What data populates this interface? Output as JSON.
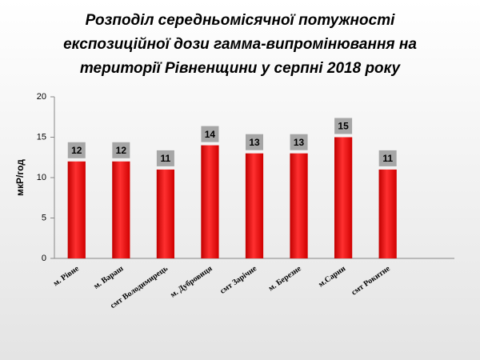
{
  "chart_data": {
    "type": "bar",
    "title": [
      "Розподіл середньомісячної потужності",
      "експозиційної дози гамма-випромінювання на",
      "території Рівненщини у серпні 2018 року"
    ],
    "y_label": "мкР/год",
    "categories": [
      "м. Рівне",
      "м. Вараш",
      "смт Володимирець",
      "м. Дубровиця",
      "смт Зарічне",
      "м. Березне",
      "м.Сарни",
      "смт Рокитне"
    ],
    "values": [
      12,
      12,
      11,
      14,
      13,
      13,
      15,
      11
    ],
    "color": "#ff0000",
    "ylim": [
      0,
      20
    ],
    "yticks": [
      0,
      5,
      10,
      15,
      20
    ],
    "grid": false
  }
}
